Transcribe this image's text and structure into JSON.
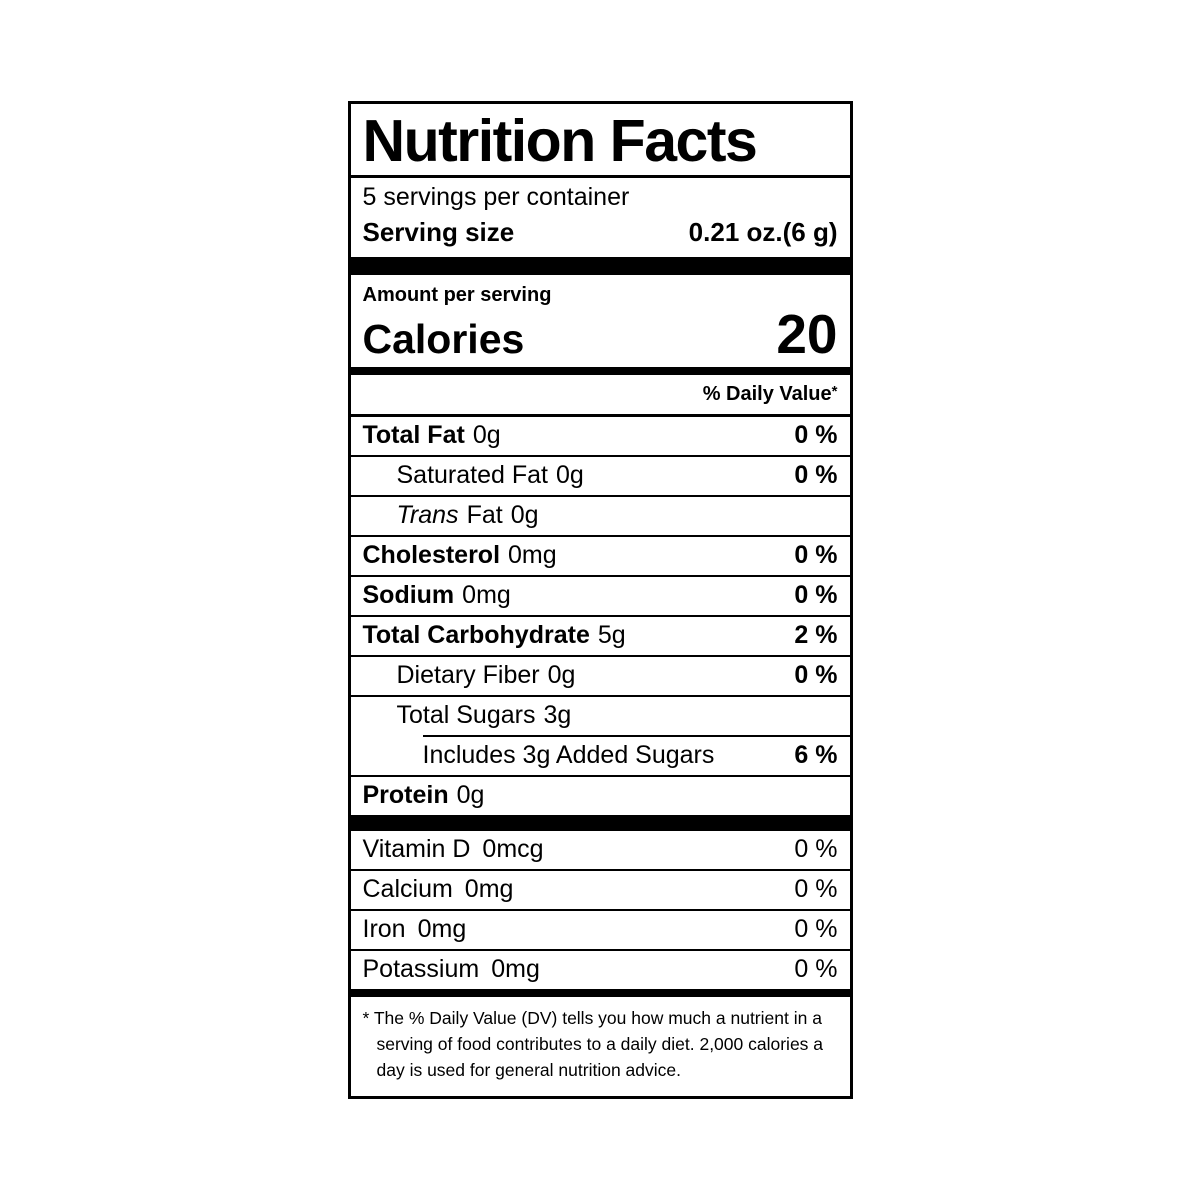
{
  "label": {
    "title": "Nutrition Facts",
    "servings_per_container": "5 servings per container",
    "serving_size": {
      "label": "Serving size",
      "value": "0.21 oz.(6 g)"
    },
    "amount_per_serving": "Amount per serving",
    "calories": {
      "label": "Calories",
      "value": "20"
    },
    "daily_value_header": "% Daily Value",
    "daily_value_asterisk": "*",
    "nutrients": [
      {
        "name": "Total Fat",
        "amount": "0g",
        "dv": "0 %"
      },
      {
        "name": "Saturated Fat",
        "amount": "0g",
        "dv": "0 %"
      },
      {
        "name_italic": "Trans",
        "name": "Fat",
        "amount": "0g",
        "dv": ""
      },
      {
        "name": "Cholesterol",
        "amount": "0mg",
        "dv": "0 %"
      },
      {
        "name": "Sodium",
        "amount": "0mg",
        "dv": "0 %"
      },
      {
        "name": "Total Carbohydrate",
        "amount": "5g",
        "dv": "2 %"
      },
      {
        "name": "Dietary Fiber",
        "amount": "0g",
        "dv": "0 %"
      },
      {
        "name": "Total Sugars",
        "amount": "3g",
        "dv": ""
      },
      {
        "name": "Includes 3g Added Sugars",
        "amount": "",
        "dv": "6 %"
      },
      {
        "name": "Protein",
        "amount": "0g",
        "dv": ""
      }
    ],
    "micronutrients": [
      {
        "name": "Vitamin D",
        "amount": "0mcg",
        "dv": "0 %"
      },
      {
        "name": "Calcium",
        "amount": "0mg",
        "dv": "0 %"
      },
      {
        "name": "Iron",
        "amount": "0mg",
        "dv": "0 %"
      },
      {
        "name": "Potassium",
        "amount": "0mg",
        "dv": "0 %"
      }
    ],
    "footnote": "* The % Daily Value (DV) tells you how much a nutrient in a serving of food contributes to a daily diet. 2,000 calories a day is used for general nutrition advice.",
    "colors": {
      "text": "#000000",
      "background": "#ffffff"
    }
  }
}
